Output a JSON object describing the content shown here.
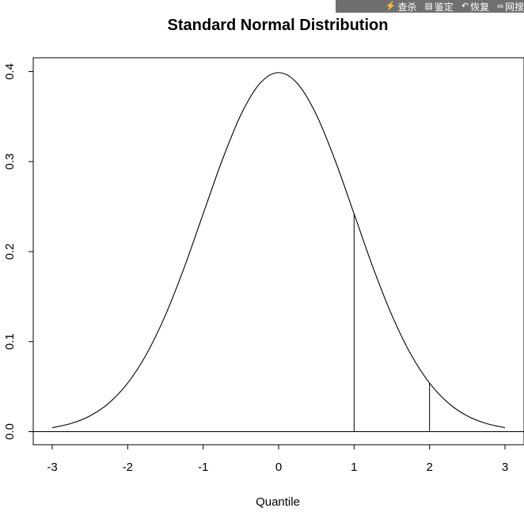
{
  "toolbar": {
    "items": [
      {
        "icon": "lightning-icon",
        "glyph": "⚡",
        "label": "查杀"
      },
      {
        "icon": "document-icon",
        "glyph": "▤",
        "label": "鉴定"
      },
      {
        "icon": "restore-icon",
        "glyph": "↶",
        "label": "恢复"
      },
      {
        "icon": "link-icon",
        "glyph": "∞",
        "label": "网搜"
      }
    ]
  },
  "chart_data": {
    "type": "line",
    "title": "Standard Normal Distribution",
    "xlabel": "Quantile",
    "ylabel": "",
    "xlim": [
      -3,
      3
    ],
    "ylim": [
      0,
      0.4
    ],
    "x_ticks": [
      "-3",
      "-2",
      "-1",
      "0",
      "1",
      "2",
      "3"
    ],
    "y_ticks": [
      "0.0",
      "0.1",
      "0.2",
      "0.3",
      "0.4"
    ],
    "series": [
      {
        "x": [
          -3.0,
          -2.75,
          -2.5,
          -2.25,
          -2.0,
          -1.75,
          -1.5,
          -1.25,
          -1.0,
          -0.75,
          -0.5,
          -0.25,
          0.0,
          0.25,
          0.5,
          0.75,
          1.0,
          1.25,
          1.5,
          1.75,
          2.0,
          2.25,
          2.5,
          2.75,
          3.0
        ],
        "y": [
          0.0044,
          0.0091,
          0.0175,
          0.0317,
          0.054,
          0.0863,
          0.1295,
          0.1826,
          0.242,
          0.3011,
          0.3521,
          0.3867,
          0.3989,
          0.3867,
          0.3521,
          0.3011,
          0.242,
          0.1826,
          0.1295,
          0.0863,
          0.054,
          0.0317,
          0.0175,
          0.0091,
          0.0044
        ]
      }
    ],
    "vertical_lines": [
      {
        "x": 1,
        "y": 0.242
      },
      {
        "x": 2,
        "y": 0.054
      }
    ],
    "baseline_y": 0,
    "grid": false
  }
}
